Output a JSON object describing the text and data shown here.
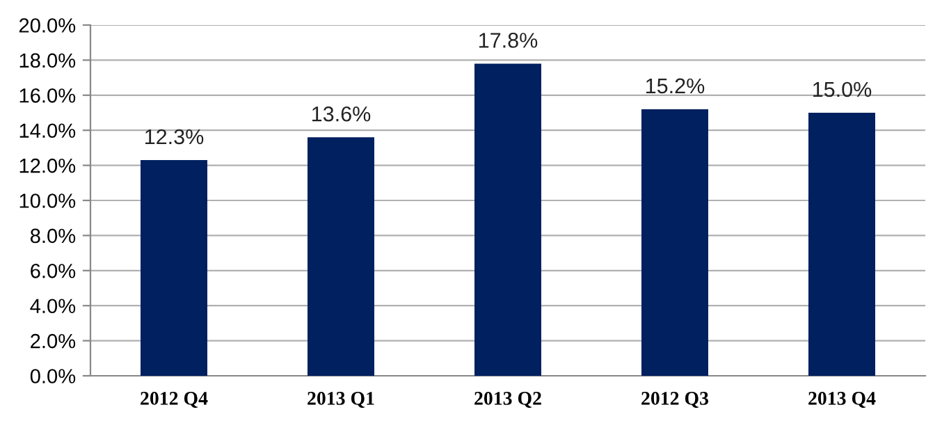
{
  "chart_data": {
    "type": "bar",
    "categories": [
      "2012 Q4",
      "2013 Q1",
      "2013 Q2",
      "2012 Q3",
      "2013 Q4"
    ],
    "values": [
      12.3,
      13.6,
      17.8,
      15.2,
      15.0
    ],
    "value_labels": [
      "12.3%",
      "13.6%",
      "17.8%",
      "15.2%",
      "15.0%"
    ],
    "color": "#002060",
    "ylim": [
      0,
      20
    ],
    "yticks": [
      {
        "value": 0,
        "label": "0.0%"
      },
      {
        "value": 2,
        "label": "2.0%"
      },
      {
        "value": 4,
        "label": "4.0%"
      },
      {
        "value": 6,
        "label": "6.0%"
      },
      {
        "value": 8,
        "label": "8.0%"
      },
      {
        "value": 10,
        "label": "10.0%"
      },
      {
        "value": 12,
        "label": "12.0%"
      },
      {
        "value": 14,
        "label": "14.0%"
      },
      {
        "value": 16,
        "label": "16.0%"
      },
      {
        "value": 18,
        "label": "18.0%"
      },
      {
        "value": 20,
        "label": "20.0%"
      }
    ],
    "grid": "y"
  }
}
